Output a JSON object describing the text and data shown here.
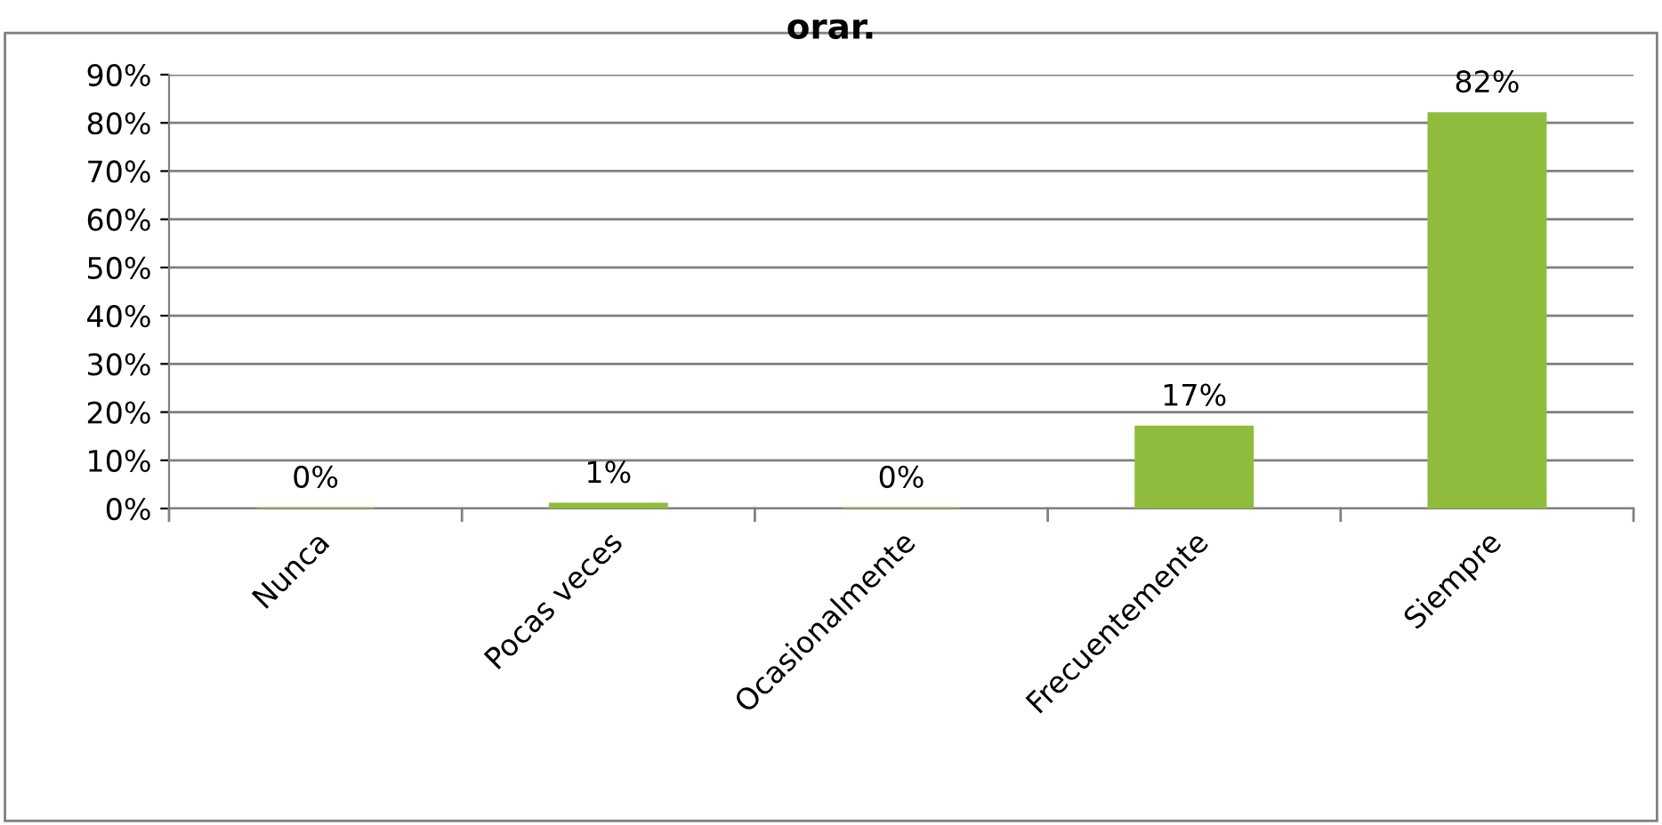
{
  "chart_data": {
    "type": "bar",
    "title": "orar.",
    "categories": [
      "Nunca",
      "Pocas veces",
      "Ocasionalmente",
      "Frecuentemente",
      "Siempre"
    ],
    "values": [
      0,
      1,
      0,
      17,
      82
    ],
    "color": "#8fbc3c",
    "ylim": [
      0,
      90
    ],
    "yticks": [
      {
        "value": 0,
        "label": "0%"
      },
      {
        "value": 10,
        "label": "10%"
      },
      {
        "value": 20,
        "label": "20%"
      },
      {
        "value": 30,
        "label": "30%"
      },
      {
        "value": 40,
        "label": "40%"
      },
      {
        "value": 50,
        "label": "50%"
      },
      {
        "value": 60,
        "label": "60%"
      },
      {
        "value": 70,
        "label": "70%"
      },
      {
        "value": 80,
        "label": "80%"
      },
      {
        "value": 90,
        "label": "90%"
      }
    ],
    "value_labels": [
      "0%",
      "1%",
      "0%",
      "17%",
      "82%"
    ],
    "grid": "y",
    "legend": false
  }
}
